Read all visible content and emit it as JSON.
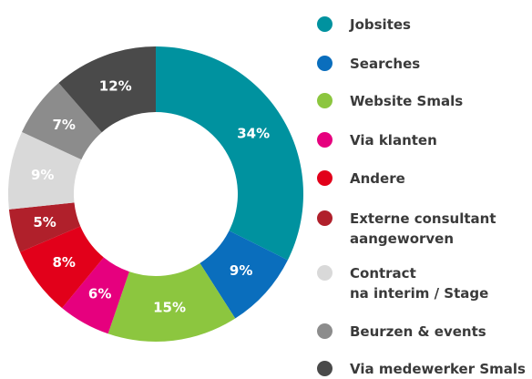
{
  "chart_data": {
    "type": "donut",
    "categories": [
      "Jobsites",
      "Searches",
      "Website Smals",
      "Via klanten",
      "Andere",
      "Externe consultant aangeworven",
      "Contract\nna interim / Stage",
      "Beurzen & events",
      "Via medewerker Smals"
    ],
    "values": [
      34,
      9,
      15,
      6,
      8,
      5,
      9,
      7,
      12
    ],
    "value_labels": [
      "34%",
      "9%",
      "15%",
      "6%",
      "8%",
      "5%",
      "9%",
      "7%",
      "12%"
    ],
    "colors": [
      "#00929f",
      "#0a6ebd",
      "#8cc63f",
      "#e6007e",
      "#e2001a",
      "#b0202b",
      "#d9d9d9",
      "#8c8c8c",
      "#4a4a4a"
    ]
  }
}
